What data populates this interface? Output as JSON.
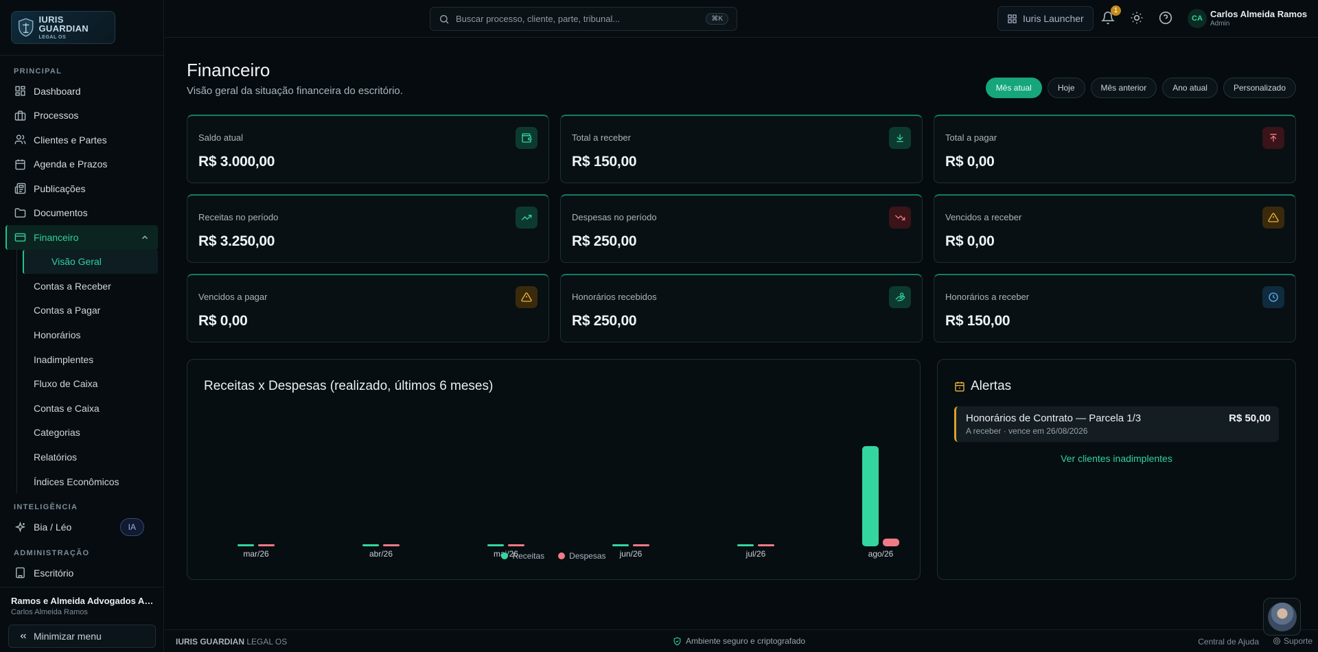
{
  "logo": {
    "line1": "IURIS GUARDIAN",
    "line2": "LEGAL OS"
  },
  "sidebar": {
    "section_principal": "PRINCIPAL",
    "items": [
      {
        "label": "Dashboard"
      },
      {
        "label": "Processos"
      },
      {
        "label": "Clientes e Partes"
      },
      {
        "label": "Agenda e Prazos"
      },
      {
        "label": "Publicações"
      },
      {
        "label": "Documentos"
      },
      {
        "label": "Financeiro"
      }
    ],
    "subitems": [
      {
        "label": "Visão Geral"
      },
      {
        "label": "Contas a Receber"
      },
      {
        "label": "Contas a Pagar"
      },
      {
        "label": "Honorários"
      },
      {
        "label": "Inadimplentes"
      },
      {
        "label": "Fluxo de Caixa"
      },
      {
        "label": "Contas e Caixa"
      },
      {
        "label": "Categorias"
      },
      {
        "label": "Relatórios"
      },
      {
        "label": "Índices Econômicos"
      }
    ],
    "section_ia": "INTELIGÊNCIA",
    "ia_item": "Bia / Léo",
    "ia_badge": "IA",
    "section_admin": "ADMINISTRAÇÃO",
    "admin_item": "Escritório",
    "office_name": "Ramos e Almeida Advogados Associados",
    "office_user": "Carlos Almeida Ramos",
    "minimize": "Minimizar menu"
  },
  "topbar": {
    "search_placeholder": "Buscar processo, cliente, parte, tribunal...",
    "search_shortcut": "⌘K",
    "launcher": "Iuris Launcher",
    "notif_count": "1",
    "avatar": "CA",
    "user_name": "Carlos Almeida Ramos",
    "user_role": "Admin"
  },
  "page": {
    "title": "Financeiro",
    "subtitle": "Visão geral da situação financeira do escritório.",
    "periods": [
      "Mês atual",
      "Hoje",
      "Mês anterior",
      "Ano atual",
      "Personalizado"
    ]
  },
  "cards": [
    {
      "label": "Saldo atual",
      "value": "R$ 3.000,00",
      "icon": "wallet-icon",
      "color": "#34d6a0"
    },
    {
      "label": "Total a receber",
      "value": "R$ 150,00",
      "icon": "download-icon",
      "color": "#34d6a0"
    },
    {
      "label": "Total a pagar",
      "value": "R$ 0,00",
      "icon": "upload-icon",
      "color": "#f07a85"
    },
    {
      "label": "Receitas no período",
      "value": "R$ 3.250,00",
      "icon": "trending-up-icon",
      "color": "#34d6a0"
    },
    {
      "label": "Despesas no período",
      "value": "R$ 250,00",
      "icon": "trending-down-icon",
      "color": "#f07a85"
    },
    {
      "label": "Vencidos a receber",
      "value": "R$ 0,00",
      "icon": "warning-icon",
      "color": "#f1b63a"
    },
    {
      "label": "Vencidos a pagar",
      "value": "R$ 0,00",
      "icon": "warning-icon",
      "color": "#f1b63a"
    },
    {
      "label": "Honorários recebidos",
      "value": "R$ 250,00",
      "icon": "hand-coins-icon",
      "color": "#34d6a0"
    },
    {
      "label": "Honorários a receber",
      "value": "R$ 150,00",
      "icon": "clock-icon",
      "color": "#5fb3ea"
    }
  ],
  "chart_data": {
    "type": "bar",
    "title": "Receitas x Despesas (realizado, últimos 6 meses)",
    "categories": [
      "mar/26",
      "abr/26",
      "mai/26",
      "jun/26",
      "jul/26",
      "ago/26"
    ],
    "series": [
      {
        "name": "Receitas",
        "color": "#34d6a0",
        "values": [
          0,
          0,
          0,
          0,
          0,
          3250
        ]
      },
      {
        "name": "Despesas",
        "color": "#f07a85",
        "values": [
          0,
          0,
          0,
          0,
          0,
          250
        ]
      }
    ],
    "ylim": [
      0,
      3250
    ],
    "grid": false,
    "legend": "bottom-center"
  },
  "alerts": {
    "title": "Alertas",
    "items": [
      {
        "title": "Honorários de Contrato — Parcela 1/3",
        "sub": "A receber · vence em 26/08/2026",
        "amount": "R$ 50,00",
        "color": "#d9a22a"
      }
    ],
    "link": "Ver clientes inadimplentes"
  },
  "footer": {
    "brand_bold": "IURIS GUARDIAN",
    "brand_rest": " LEGAL OS",
    "secure": "Ambiente seguro e criptografado",
    "help": "Central de Ajuda",
    "support": "Suporte"
  }
}
